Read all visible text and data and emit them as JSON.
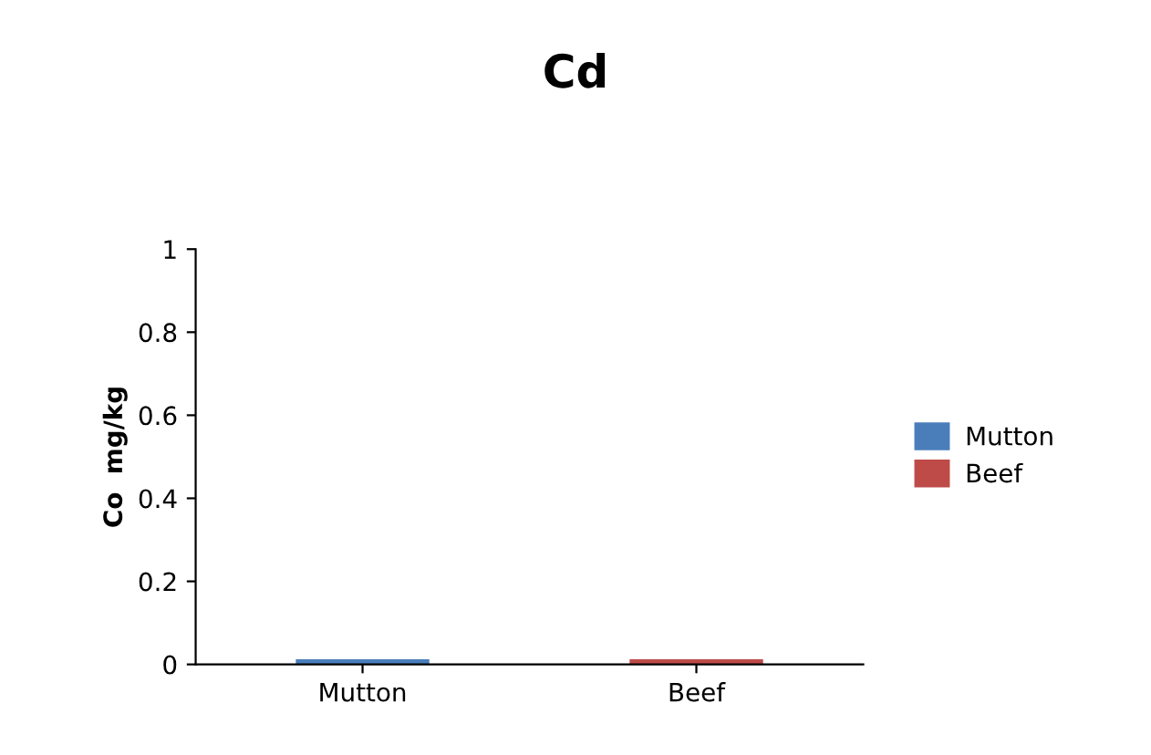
{
  "chart_data": {
    "type": "bar",
    "title": "Cd",
    "ylabel": "Co  mg/kg",
    "categories": [
      "Mutton",
      "Beef"
    ],
    "series": [
      {
        "name": "Mutton",
        "color": "#4a7ebb",
        "values": [
          0,
          null
        ]
      },
      {
        "name": "Beef",
        "color": "#be4b48",
        "values": [
          null,
          0
        ]
      }
    ],
    "ylim": [
      0,
      1
    ],
    "yticks": [
      0,
      0.2,
      0.4,
      0.6,
      0.8,
      1
    ],
    "grid": false,
    "legend": "right"
  }
}
